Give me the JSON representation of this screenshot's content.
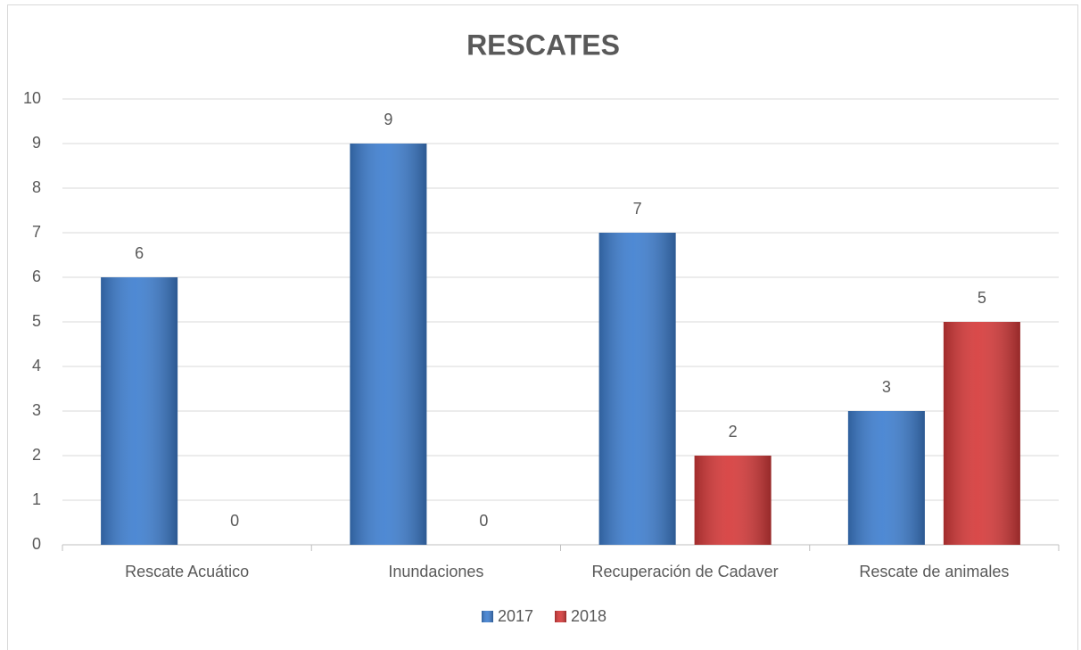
{
  "chart_data": {
    "type": "bar",
    "title": "RESCATES",
    "categories": [
      "Rescate Acuático",
      "Inundaciones",
      "Recuperación de Cadaver",
      "Rescate de animales"
    ],
    "series": [
      {
        "name": "2017",
        "color": "#3f7fd0",
        "values": [
          6,
          9,
          7,
          3
        ]
      },
      {
        "name": "2018",
        "color": "#d63a3a",
        "values": [
          0,
          0,
          2,
          5
        ]
      }
    ],
    "ylim": [
      0,
      10
    ],
    "yticks": [
      0,
      1,
      2,
      3,
      4,
      5,
      6,
      7,
      8,
      9,
      10
    ],
    "grid": true,
    "legend": "bottom"
  }
}
